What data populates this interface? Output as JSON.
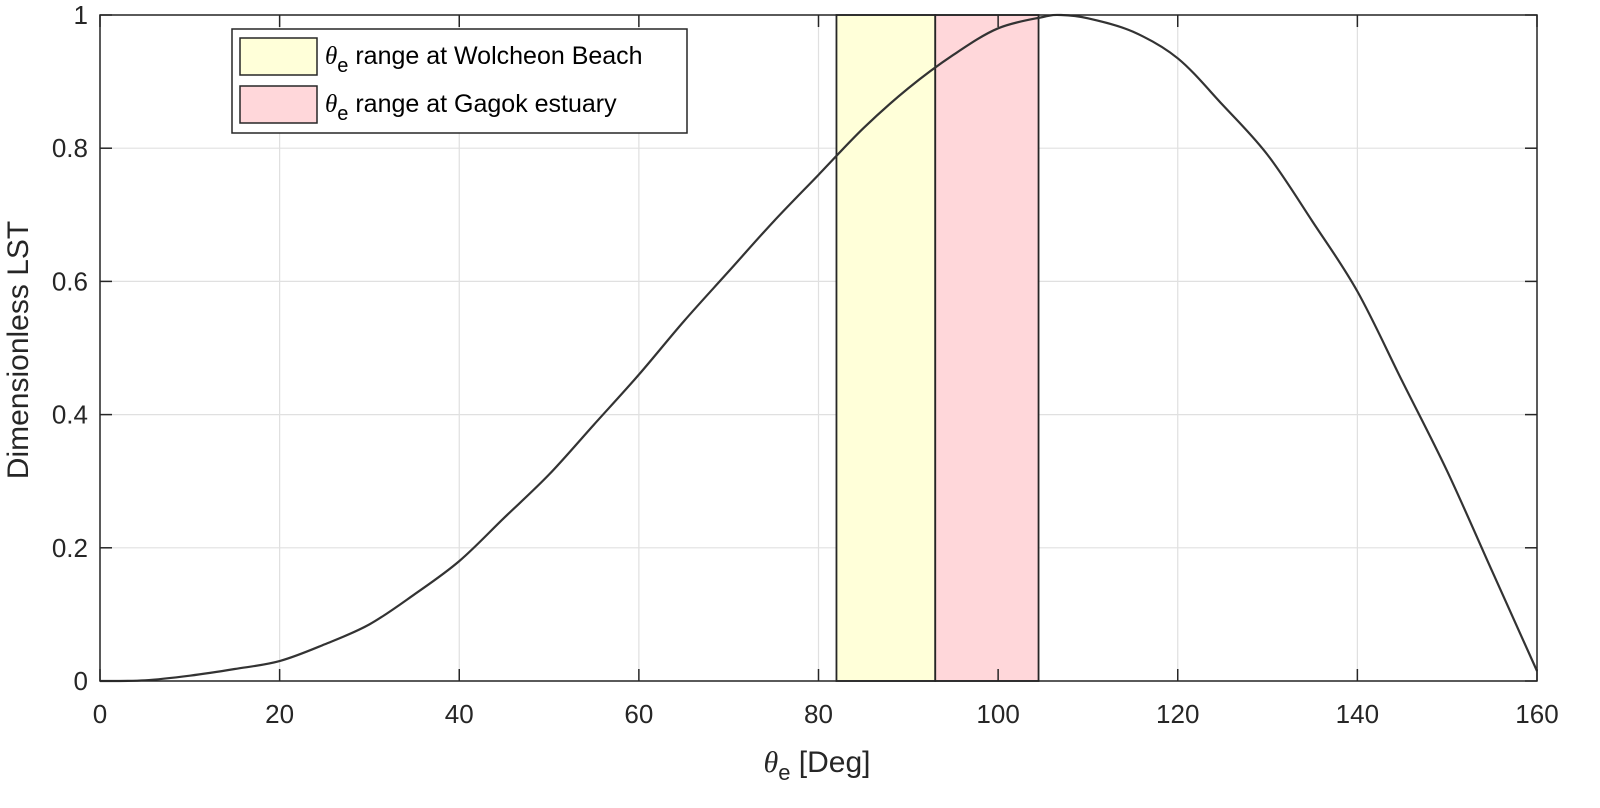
{
  "chart_data": {
    "type": "line",
    "xlabel_symbol": "θ",
    "xlabel_subscript": "e",
    "xlabel_rest": " [Deg]",
    "ylabel": "Dimensionless LST",
    "xlim": [
      0,
      160
    ],
    "ylim": [
      0,
      1
    ],
    "xticks": [
      0,
      20,
      40,
      60,
      80,
      100,
      120,
      140,
      160
    ],
    "yticks": [
      0,
      0.2,
      0.4,
      0.6,
      0.8,
      1
    ],
    "xtick_labels": [
      "0",
      "20",
      "40",
      "60",
      "80",
      "100",
      "120",
      "140",
      "160"
    ],
    "ytick_labels": [
      "0",
      "0.2",
      "0.4",
      "0.6",
      "0.8",
      "1"
    ],
    "grid": true,
    "legend_placement": "top-left",
    "series": [
      {
        "x": [
          0,
          5,
          10,
          15,
          20,
          25,
          30,
          35,
          40,
          45,
          50,
          55,
          60,
          65,
          70,
          75,
          80,
          85,
          90,
          95,
          100,
          105,
          107,
          110,
          115,
          120,
          125,
          130,
          135,
          140,
          145,
          150,
          155,
          160
        ],
        "y": [
          0,
          0.001,
          0.008,
          0.018,
          0.03,
          0.055,
          0.085,
          0.13,
          0.18,
          0.245,
          0.31,
          0.385,
          0.46,
          0.54,
          0.615,
          0.69,
          0.76,
          0.83,
          0.89,
          0.94,
          0.98,
          0.997,
          1.0,
          0.995,
          0.975,
          0.935,
          0.865,
          0.79,
          0.69,
          0.585,
          0.45,
          0.315,
          0.165,
          0.015
        ],
        "color": "#333333"
      }
    ],
    "bands": [
      {
        "label_rest": " range at Wolcheon Beach",
        "x_start": 82,
        "x_end": 93,
        "color": "#ffffd9"
      },
      {
        "label_rest": " range at Gagok estuary",
        "x_start": 93,
        "x_end": 104.5,
        "color": "#ffd7da"
      }
    ],
    "legend_symbol": "θ",
    "legend_subscript": "e"
  }
}
